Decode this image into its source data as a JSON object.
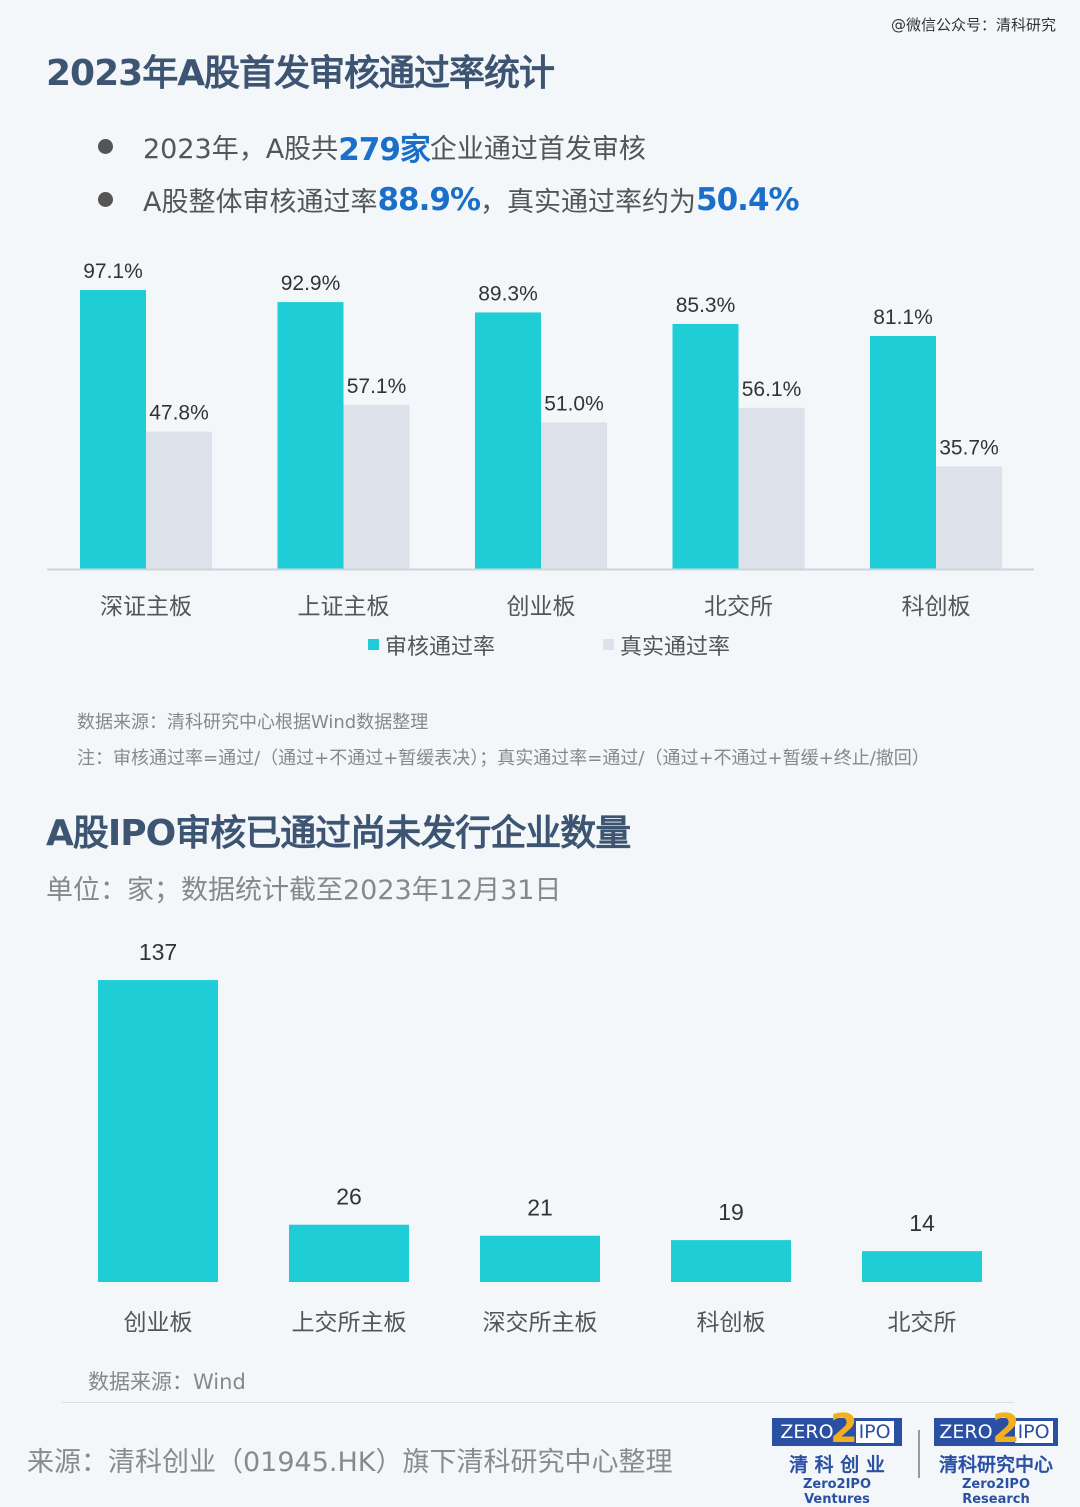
{
  "watermark": "@微信公众号：清科研究",
  "section1": {
    "title": "2023年A股首发审核通过率统计",
    "bullet1": {
      "pre": "2023年，A股共",
      "num": "279家",
      "post": "企业通过首发审核"
    },
    "bullet2": {
      "pre": "A股整体审核通过率",
      "num1": "88.9%",
      "mid": "，真实通过率约为",
      "num2": "50.4%"
    },
    "source": "数据来源：清科研究中心根据Wind数据整理",
    "note": "注：审核通过率=通过/（通过+不通过+暂缓表决）；真实通过率=通过/（通过+不通过+暂缓+终止/撤回）"
  },
  "section2": {
    "title": "A股IPO审核已通过尚未发行企业数量",
    "subtitle": "单位：家；数据统计截至2023年12月31日",
    "source": "数据来源：Wind"
  },
  "footer": {
    "source": "来源：清科创业（01945.HK）旗下清科研究中心整理",
    "logo1": {
      "a": "ZERO",
      "b": "2",
      "c": "IPO",
      "cn": "清 科 创 业",
      "en": "Zero2IPO Ventures"
    },
    "logo2": {
      "a": "ZERO",
      "b": "2",
      "c": "IPO",
      "cn": "清科研究中心",
      "en": "Zero2IPO Research"
    }
  },
  "chart_data": [
    {
      "type": "bar",
      "categories": [
        "深证主板",
        "上证主板",
        "创业板",
        "北交所",
        "科创板"
      ],
      "series": [
        {
          "name": "审核通过率",
          "values": [
            97.1,
            92.9,
            89.3,
            85.3,
            81.1
          ],
          "labels": [
            "97.1%",
            "92.9%",
            "89.3%",
            "85.3%",
            "81.1%"
          ],
          "color": "#1ecdd6"
        },
        {
          "name": "真实通过率",
          "values": [
            47.8,
            57.1,
            51.0,
            56.1,
            35.7
          ],
          "labels": [
            "47.8%",
            "57.1%",
            "51.0%",
            "56.1%",
            "35.7%"
          ],
          "color": "#dde1e9"
        }
      ],
      "ylim": [
        0,
        100
      ],
      "legend": "bottom",
      "grid": false
    },
    {
      "type": "bar",
      "categories": [
        "创业板",
        "上交所主板",
        "深交所主板",
        "科创板",
        "北交所"
      ],
      "values": [
        137,
        26,
        21,
        19,
        14
      ],
      "color": "#1ecdd6",
      "grid": false
    }
  ]
}
